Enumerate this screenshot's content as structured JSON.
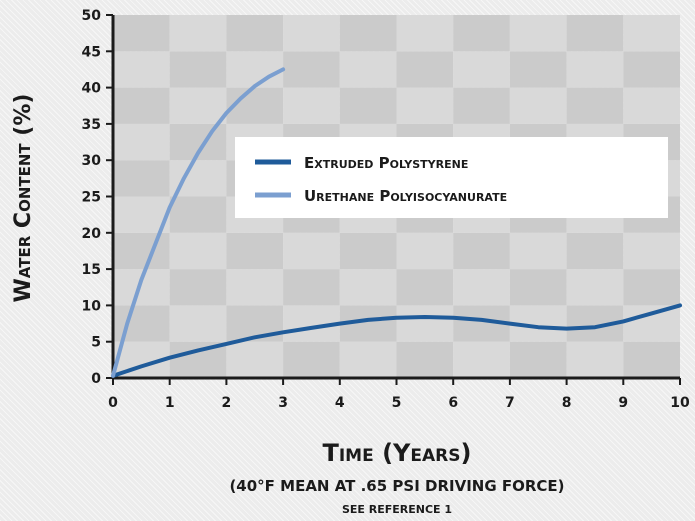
{
  "chart_data": {
    "type": "line",
    "xlabel": "Time (Years)",
    "xlabel_sub": "(40°F MEAN AT .65 PSI DRIVING FORCE)",
    "ylabel": "Water Content (%)",
    "note": "SEE REFERENCE 1",
    "xlim": [
      0,
      10
    ],
    "ylim": [
      0,
      50
    ],
    "xticks": [
      0,
      1,
      2,
      3,
      4,
      5,
      6,
      7,
      8,
      9,
      10
    ],
    "yticks": [
      0,
      5,
      10,
      15,
      20,
      25,
      30,
      35,
      40,
      45,
      50
    ],
    "grid": "checkerboard",
    "legend_position": "center-right",
    "series": [
      {
        "name": "Extruded Polystyrene",
        "color": "#1f5b9a",
        "x": [
          0,
          0.5,
          1,
          1.5,
          2,
          2.5,
          3,
          3.5,
          4,
          4.5,
          5,
          5.5,
          6,
          6.5,
          7,
          7.5,
          8,
          8.5,
          9,
          9.5,
          10
        ],
        "y": [
          0.3,
          1.6,
          2.8,
          3.8,
          4.7,
          5.6,
          6.3,
          6.9,
          7.5,
          8.0,
          8.3,
          8.4,
          8.3,
          8.0,
          7.5,
          7.0,
          6.8,
          7.0,
          7.8,
          8.9,
          10.0
        ]
      },
      {
        "name": "Urethane Polyisocyanurate",
        "color": "#7b9fd0",
        "x": [
          0,
          0.25,
          0.5,
          0.75,
          1,
          1.25,
          1.5,
          1.75,
          2,
          2.25,
          2.5,
          2.75,
          3
        ],
        "y": [
          0.3,
          7.5,
          13.5,
          18.5,
          23.5,
          27.5,
          31.0,
          34.0,
          36.5,
          38.5,
          40.2,
          41.5,
          42.5
        ]
      }
    ]
  }
}
